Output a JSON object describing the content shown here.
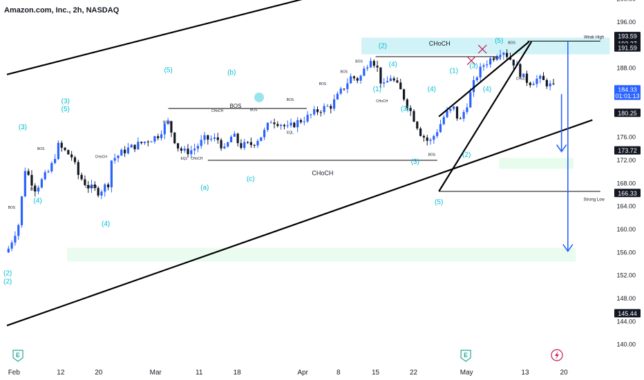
{
  "header": {
    "title": "Amazon.com, Inc., 2h, NASDAQ"
  },
  "chart_data": {
    "type": "candlestick",
    "symbol": "Amazon.com, Inc.",
    "interval": "2h",
    "exchange": "NASDAQ",
    "ylim": [
      138,
      202
    ],
    "y_ticks": [
      140,
      144,
      148,
      152,
      156,
      160,
      164,
      168,
      172,
      176,
      180,
      184,
      188,
      192,
      196,
      200
    ],
    "y_tick_labels": [
      "140.00",
      "144.00",
      "148.00",
      "152.00",
      "156.00",
      "160.00",
      "164.00",
      "168.00",
      "172.00",
      "176.00",
      "180.00",
      "184.00",
      "188.00",
      "192.00",
      "196.00",
      "200.00"
    ],
    "x_ticks": [
      "Feb",
      "12",
      "20",
      "Mar",
      "11",
      "18",
      "Apr",
      "8",
      "15",
      "22",
      "May",
      "13",
      "20"
    ],
    "price_labels": [
      {
        "value": 193.59,
        "text": "193.59",
        "style": "dark"
      },
      {
        "value": 192.27,
        "text": "192.27",
        "style": "dark"
      },
      {
        "value": 191.59,
        "text": "191.59",
        "style": "dark"
      },
      {
        "value": 184.33,
        "text": "184.33",
        "style": "blue"
      },
      {
        "value": 183.2,
        "text": "01:01:13",
        "style": "blue"
      },
      {
        "value": 180.25,
        "text": "180.25",
        "style": "dark"
      },
      {
        "value": 173.72,
        "text": "173.72",
        "style": "dark"
      },
      {
        "value": 166.33,
        "text": "166.33",
        "style": "dark"
      },
      {
        "value": 145.44,
        "text": "145.44",
        "style": "dark"
      }
    ],
    "wave_labels": [
      {
        "text": "(2)",
        "t": 0.1,
        "p": 152.0
      },
      {
        "text": "(2)",
        "t": 0.1,
        "p": 150.6
      },
      {
        "text": "(3)",
        "t": 2.0,
        "p": 177.4
      },
      {
        "text": "(4)",
        "t": 3.9,
        "p": 164.6
      },
      {
        "text": "(3)",
        "t": 7.4,
        "p": 181.9
      },
      {
        "text": "(5)",
        "t": 7.4,
        "p": 180.5
      },
      {
        "text": "(4)",
        "t": 12.5,
        "p": 160.6
      },
      {
        "text": "(5)",
        "t": 20.4,
        "p": 187.3
      },
      {
        "text": "(b)",
        "t": 28.4,
        "p": 186.9
      },
      {
        "text": "(a)",
        "t": 25.0,
        "p": 166.9
      },
      {
        "text": "(c)",
        "t": 30.8,
        "p": 168.4
      },
      {
        "text": "(2)",
        "t": 47.5,
        "p": 191.5
      },
      {
        "text": "(4)",
        "t": 48.8,
        "p": 188.3
      },
      {
        "text": "(1)",
        "t": 46.8,
        "p": 184.0
      },
      {
        "text": "(3)",
        "t": 50.3,
        "p": 180.6
      },
      {
        "text": "(3)",
        "t": 51.6,
        "p": 171.4
      },
      {
        "text": "(4)",
        "t": 53.7,
        "p": 184.0
      },
      {
        "text": "(5)",
        "t": 54.6,
        "p": 164.4
      },
      {
        "text": "(1)",
        "t": 56.5,
        "p": 187.2
      },
      {
        "text": "(2)",
        "t": 58.1,
        "p": 172.6
      },
      {
        "text": "(3)",
        "t": 59.0,
        "p": 188.0
      },
      {
        "text": "(4)",
        "t": 60.7,
        "p": 184.0
      },
      {
        "text": "(5)",
        "t": 62.2,
        "p": 192.4
      }
    ],
    "annotations": [
      {
        "text": "CHoCH",
        "t": 54.7,
        "p": 191.9,
        "size": 9
      },
      {
        "text": "CHoCH",
        "t": 39.9,
        "p": 169.4,
        "size": 9
      },
      {
        "text": "BOS",
        "t": 28.9,
        "p": 181.1,
        "size": 8
      },
      {
        "text": "Weak High",
        "t": 74.2,
        "p": 193.2,
        "size": 6
      },
      {
        "text": "Strong Low",
        "t": 74.2,
        "p": 165.0,
        "size": 6
      },
      {
        "text": "BOS",
        "t": 0.6,
        "p": 163.6,
        "size": 5
      },
      {
        "text": "BOS",
        "t": 4.3,
        "p": 173.8,
        "size": 5
      },
      {
        "text": "EQL",
        "t": 3.4,
        "p": 166.8,
        "size": 5
      },
      {
        "text": "CHoCH",
        "t": 11.9,
        "p": 172.4,
        "size": 5
      },
      {
        "text": "CHoCH",
        "t": 10.6,
        "p": 167.2,
        "size": 5
      },
      {
        "text": "EQL",
        "t": 22.4,
        "p": 172.1,
        "size": 5
      },
      {
        "text": "CHoCH",
        "t": 24.0,
        "p": 172.1,
        "size": 5
      },
      {
        "text": "BOS",
        "t": 20.2,
        "p": 178.4,
        "size": 5
      },
      {
        "text": "CHoCH",
        "t": 26.6,
        "p": 180.4,
        "size": 5
      },
      {
        "text": "BOS",
        "t": 31.2,
        "p": 180.6,
        "size": 5
      },
      {
        "text": "BOS",
        "t": 35.8,
        "p": 182.3,
        "size": 5
      },
      {
        "text": "EQL",
        "t": 35.8,
        "p": 176.6,
        "size": 5
      },
      {
        "text": "BOS",
        "t": 39.9,
        "p": 185.1,
        "size": 5
      },
      {
        "text": "BOS",
        "t": 42.6,
        "p": 187.2,
        "size": 5
      },
      {
        "text": "BOS",
        "t": 44.5,
        "p": 189.0,
        "size": 5
      },
      {
        "text": "CHoCH",
        "t": 47.4,
        "p": 182.1,
        "size": 5
      },
      {
        "text": "BOS",
        "t": 53.7,
        "p": 172.8,
        "size": 5
      },
      {
        "text": "BOS",
        "t": 62.0,
        "p": 189.6,
        "size": 5
      },
      {
        "text": "BOS",
        "t": 63.8,
        "p": 192.2,
        "size": 5
      },
      {
        "text": "CHoCH",
        "t": 65.1,
        "p": 186.0,
        "size": 5
      }
    ],
    "channel_lines": [
      {
        "t1": 0,
        "p1": 186.9,
        "t2": 59.4,
        "p2": 207.7
      },
      {
        "t1": 0,
        "p1": 143.3,
        "t2": 74.0,
        "p2": 179.0
      },
      {
        "t1": 54.6,
        "p1": 179.6,
        "t2": 66.0,
        "p2": 192.6
      },
      {
        "t1": 54.6,
        "p1": 166.6,
        "t2": 66.3,
        "p2": 192.6
      }
    ],
    "level_lines": [
      {
        "t1": 46.6,
        "p1": 190.0,
        "t2": 62.1,
        "p2": 190.0,
        "dashed": false
      },
      {
        "t1": 65.8,
        "p1": 192.7,
        "t2": 75.0,
        "p2": 192.7,
        "dashed": false
      },
      {
        "t1": 54.6,
        "p1": 166.6,
        "t2": 75.0,
        "p2": 166.6,
        "dashed": false
      },
      {
        "t1": 25.4,
        "p1": 172.0,
        "t2": 54.4,
        "p2": 172.0,
        "dashed": false
      },
      {
        "t1": 20.4,
        "p1": 181.0,
        "t2": 37.9,
        "p2": 181.0,
        "dashed": false
      }
    ],
    "zones": [
      {
        "t1": 44.8,
        "p1": 190.4,
        "t2": 76.2,
        "p2": 193.3,
        "color": "#b2ebf2",
        "opacity": 0.6
      },
      {
        "t1": 62.2,
        "p1": 170.5,
        "t2": 71.6,
        "p2": 172.4,
        "color": "#b9f6ca",
        "opacity": 0.35
      },
      {
        "t1": 7.6,
        "p1": 154.4,
        "t2": 71.9,
        "p2": 156.8,
        "color": "#b9f6ca",
        "opacity": 0.3
      }
    ],
    "arrows": [
      {
        "t": 70.1,
        "p1": 183.5,
        "p2": 173.5
      },
      {
        "t": 70.9,
        "p1": 192.6,
        "p2": 156.2
      }
    ],
    "events": [
      {
        "label": "E",
        "t": 1.4
      },
      {
        "label": "E",
        "t": 58.0
      }
    ],
    "marker_x": [
      {
        "t": 58.7,
        "p": 189.3
      },
      {
        "t": 60.1,
        "p": 191.3
      }
    ],
    "colors": {
      "up": "#2962ff",
      "down": "#131722",
      "line": "#000000",
      "arrow": "#2962ff",
      "label": "#00bcd4"
    }
  }
}
